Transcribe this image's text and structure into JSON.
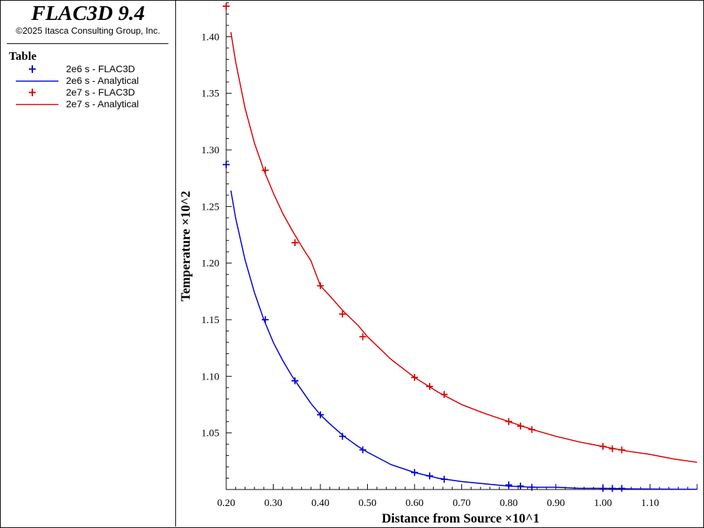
{
  "header": {
    "app_title": "FLAC3D 9.4",
    "copyright": "©2025 Itasca Consulting Group, Inc."
  },
  "legend": {
    "title": "Table",
    "items": [
      {
        "label": "2e6 s - FLAC3D",
        "symbol": "plus",
        "color": "#0000dd"
      },
      {
        "label": "2e6 s - Analytical",
        "symbol": "line",
        "color": "#0000dd"
      },
      {
        "label": "2e7 s - FLAC3D",
        "symbol": "plus",
        "color": "#dd0000"
      },
      {
        "label": "2e7 s - Analytical",
        "symbol": "line",
        "color": "#dd0000"
      }
    ]
  },
  "chart_data": {
    "type": "line",
    "title": "",
    "xlabel": "Distance from Source ×10^1",
    "ylabel": "Temperature ×10^2",
    "xlim": [
      0.2,
      1.2
    ],
    "ylim": [
      1.0,
      1.43
    ],
    "grid": false,
    "legend_placement": "left-panel",
    "x_ticks": [
      "0.20",
      "0.30",
      "0.40",
      "0.50",
      "0.60",
      "0.70",
      "0.80",
      "0.90",
      "1.00",
      "1.10"
    ],
    "y_ticks": [
      "1.05",
      "1.10",
      "1.15",
      "1.20",
      "1.25",
      "1.30",
      "1.35",
      "1.40"
    ],
    "series": [
      {
        "name": "2e6 s - FLAC3D",
        "style": "markers",
        "color": "#0000dd",
        "x": [
          0.2,
          0.283,
          0.346,
          0.4,
          0.447,
          0.49,
          0.6,
          0.632,
          0.663,
          0.8,
          0.825,
          0.849,
          1.0,
          1.02,
          1.04
        ],
        "y": [
          1.287,
          1.15,
          1.096,
          1.066,
          1.047,
          1.035,
          1.015,
          1.012,
          1.009,
          1.004,
          1.003,
          1.002,
          1.001,
          1.001,
          1.001
        ]
      },
      {
        "name": "2e6 s - Analytical",
        "style": "line",
        "color": "#0000dd",
        "x": [
          0.21,
          0.22,
          0.24,
          0.26,
          0.28,
          0.3,
          0.32,
          0.34,
          0.36,
          0.38,
          0.4,
          0.42,
          0.45,
          0.48,
          0.5,
          0.55,
          0.6,
          0.65,
          0.7,
          0.75,
          0.8,
          0.85,
          0.9,
          0.95,
          1.0,
          1.05,
          1.1,
          1.15,
          1.2
        ],
        "y": [
          1.264,
          1.24,
          1.203,
          1.174,
          1.15,
          1.13,
          1.114,
          1.1,
          1.088,
          1.076,
          1.066,
          1.058,
          1.047,
          1.038,
          1.033,
          1.022,
          1.015,
          1.01,
          1.007,
          1.005,
          1.003,
          1.002,
          1.002,
          1.001,
          1.001,
          1.0006,
          1.0004,
          1.0003,
          1.0002
        ]
      },
      {
        "name": "2e7 s - FLAC3D",
        "style": "markers",
        "color": "#dd0000",
        "x": [
          0.2,
          0.283,
          0.346,
          0.4,
          0.447,
          0.49,
          0.6,
          0.632,
          0.663,
          0.8,
          0.825,
          0.849,
          1.0,
          1.02,
          1.04
        ],
        "y": [
          1.427,
          1.282,
          1.218,
          1.18,
          1.155,
          1.135,
          1.099,
          1.091,
          1.084,
          1.06,
          1.056,
          1.053,
          1.038,
          1.036,
          1.035
        ]
      },
      {
        "name": "2e7 s - Analytical",
        "style": "line",
        "color": "#dd0000",
        "x": [
          0.21,
          0.22,
          0.24,
          0.26,
          0.28,
          0.3,
          0.32,
          0.34,
          0.36,
          0.38,
          0.4,
          0.42,
          0.45,
          0.48,
          0.5,
          0.55,
          0.6,
          0.65,
          0.7,
          0.75,
          0.8,
          0.85,
          0.9,
          0.95,
          1.0,
          1.05,
          1.1,
          1.15,
          1.2
        ],
        "y": [
          1.404,
          1.378,
          1.337,
          1.306,
          1.282,
          1.262,
          1.244,
          1.229,
          1.215,
          1.202,
          1.18,
          1.171,
          1.157,
          1.145,
          1.135,
          1.115,
          1.099,
          1.086,
          1.075,
          1.067,
          1.06,
          1.053,
          1.047,
          1.042,
          1.038,
          1.034,
          1.031,
          1.027,
          1.024
        ]
      }
    ]
  }
}
